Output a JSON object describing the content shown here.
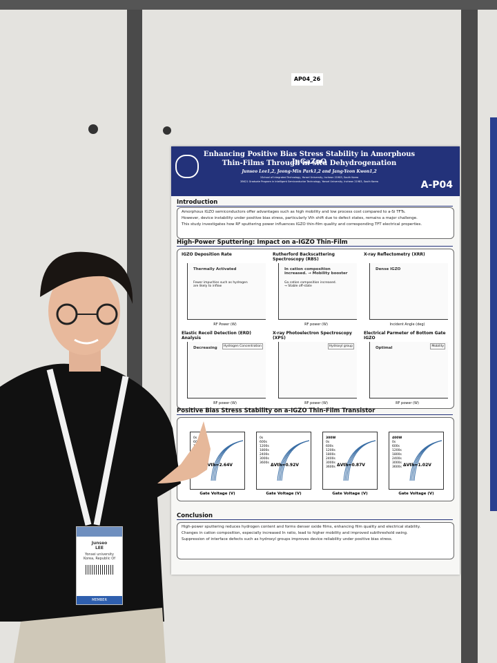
{
  "board_label": "AP04_26",
  "poster": {
    "title": [
      "Enhancing Positive Bias Stress Stability in Amorphous InGaZnO",
      "Thin-Films Through in-situ Dehydrogenation"
    ],
    "authors": "Junseo Lee1,2, Jeong-Min Park1,2 and Jang-Yeon Kwon1,2",
    "affiliations": [
      "1School of Integrated Technology, Yonsei University, Incheon 21983, South Korea",
      "2BK21 Graduate Program in Intelligent Semiconductor Technology, Yonsei University, Incheon 21983, South Korea"
    ],
    "code": "A-P04",
    "intro": {
      "heading": "Introduction",
      "bullets": [
        "Amorphous IGZO semiconductors offer advantages such as high mobility and low process cost compared to a-Si TFTs.",
        "However, device instability under positive bias stress, particularly Vth shift due to defect states, remains a major challenge.",
        "This study investigates how RF sputtering power influences IGZO thin-film quality and corresponding TFT electrical properties."
      ]
    },
    "sputter": {
      "heading": "High-Power Sputtering: Impact on a-IGZO Thin-Film",
      "panels": [
        {
          "title": "IGZO Deposition Rate",
          "note": "Thermally Activated",
          "sub": "Fewer impurities such as hydrogen are likely to inflow",
          "xlabel": "RF Power (W)"
        },
        {
          "title": "Rutherford Backscattering Spectroscopy (RBS)",
          "note": "In cation composition increased. → Mobility booster",
          "sub": "Ga cation composition increased. → Stable off-state",
          "xlabel": "RF power (W)"
        },
        {
          "title": "X-ray Reflectometry (XRR)",
          "note": "Dense IGZO",
          "xlabel": "Incident Angle (deg)"
        },
        {
          "title": "Elastic Recoil Detection (ERD) Analysis",
          "note": "Decreasing",
          "legend": "Hydrogen Concentration",
          "xlabel": "RF power (W)"
        },
        {
          "title": "X-ray Photoelectron Spectroscopy (XPS)",
          "legend": "Hydroxyl group",
          "xlabel": "RF power (W)"
        },
        {
          "title": "Electrical Parmeter of Bottom Gate IGZO",
          "note": "Optimal",
          "legend": "Mobility",
          "xlabel": "RF power (W)"
        }
      ]
    },
    "pbs": {
      "heading": "Positive Bias Stress Stability on a-IGZO Thin-Film Transistor",
      "times": [
        "0s",
        "600s",
        "1200s",
        "1800s",
        "2400s",
        "3000s",
        "3600s"
      ],
      "xlabel": "Gate Voltage (V)",
      "panels": [
        {
          "shift": "ΔVth=2.64V"
        },
        {
          "shift": "ΔVth=0.92V"
        },
        {
          "power": "300W",
          "shift": "ΔVth=0.87V"
        },
        {
          "power": "400W",
          "shift": "ΔVth=1.02V"
        }
      ]
    },
    "conclusion": {
      "heading": "Conclusion",
      "bullets": [
        "High-power sputtering reduces hydrogen content and forms denser oxide films, enhancing film quality and electrical stability.",
        "Changes in cation composition, especially increased In ratio, lead to higher mobility and improved subthreshold swing.",
        "Suppression of interface defects such as hydroxyl groups improves device reliability under positive bias stress."
      ]
    }
  },
  "badge": {
    "name": [
      "Junseo",
      "LEE"
    ],
    "org": "Yonsei university",
    "country": "Korea, Republic Of",
    "role": "MEMBER"
  }
}
